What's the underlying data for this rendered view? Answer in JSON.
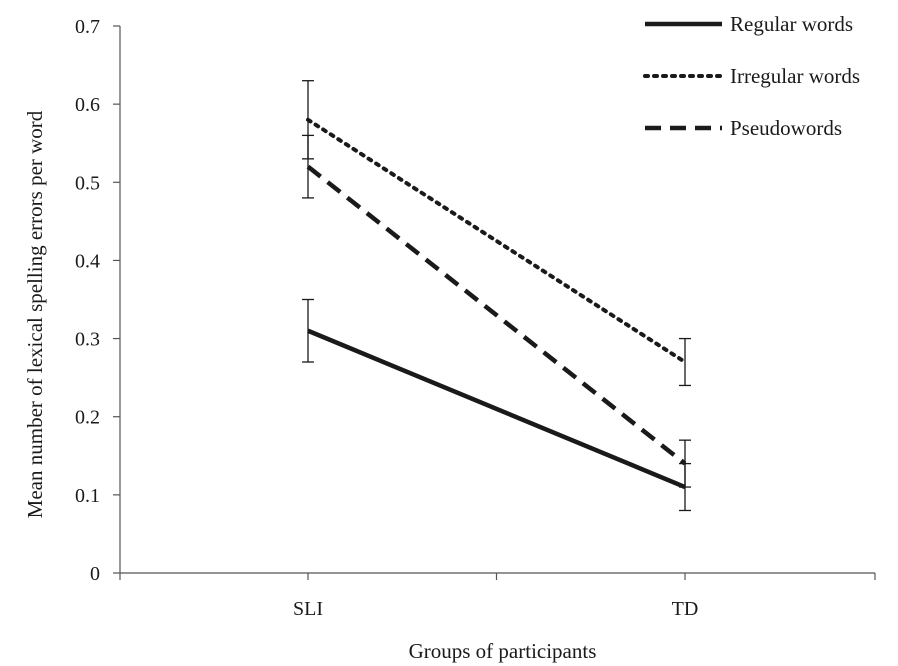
{
  "chart_data": {
    "type": "line",
    "categories": [
      "SLI",
      "TD"
    ],
    "xlabel": "Groups of participants",
    "ylabel": "Mean number of lexical spelling errors per word",
    "ylim": [
      0,
      0.7
    ],
    "yticks": [
      "0",
      "0.1",
      "0.2",
      "0.3",
      "0.4",
      "0.5",
      "0.6",
      "0.7"
    ],
    "legend_position": "top-right",
    "series": [
      {
        "name": "Regular words",
        "style": "solid",
        "color": "#1a1a1a",
        "values": [
          0.31,
          0.11
        ],
        "error": [
          0.04,
          0.03
        ]
      },
      {
        "name": "Irregular words",
        "style": "dotted",
        "color": "#1a1a1a",
        "values": [
          0.58,
          0.27
        ],
        "error": [
          0.05,
          0.03
        ]
      },
      {
        "name": "Pseudowords",
        "style": "dashed",
        "color": "#1a1a1a",
        "values": [
          0.52,
          0.14
        ],
        "error": [
          0.04,
          0.03
        ]
      }
    ]
  }
}
